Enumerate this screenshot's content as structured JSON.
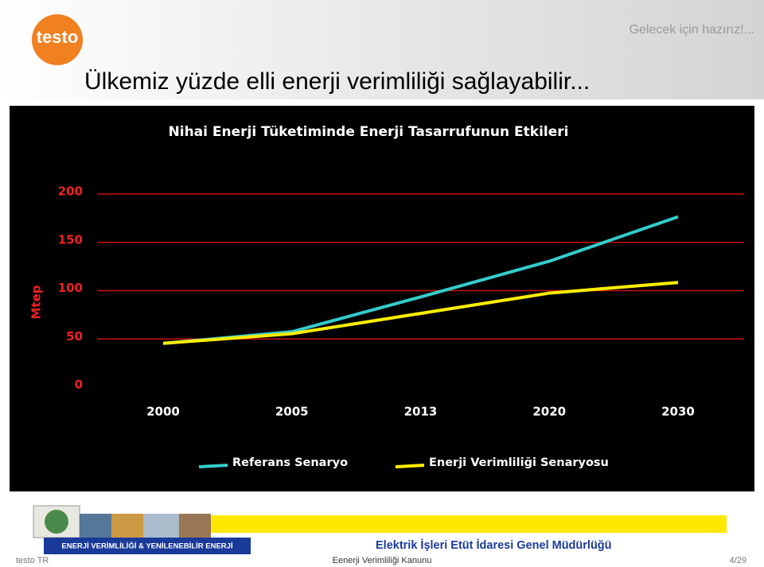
{
  "header": {
    "logo": "testo",
    "tagline": "Gelecek için hazırız!...",
    "title": "Ülkemiz yüzde elli enerji verimliliği sağlayabilir..."
  },
  "chart_data": {
    "type": "line",
    "title": "Nihai Enerji Tüketiminde Enerji Tasarrufunun Etkileri",
    "y_label": "Mtep",
    "categories": [
      "2000",
      "2005",
      "2013",
      "2020",
      "2030"
    ],
    "series": [
      {
        "name": "Referans Senaryo",
        "color": "#33cccc",
        "values": [
          43,
          55,
          91,
          128,
          174
        ]
      },
      {
        "name": "Enerji Verimliliği Senaryosu",
        "color": "#ffee00",
        "values": [
          43,
          53,
          74,
          95,
          106
        ]
      }
    ],
    "ylim": [
      0,
      200
    ],
    "yticks": [
      0,
      50,
      100,
      150,
      200
    ],
    "grid": true,
    "grid_color": "#cc1111",
    "tick_color": "#ee2222"
  },
  "banner": {
    "left": "ENERJİ VERİMLİLİĞİ & YENİLENEBİLİR ENERJİ",
    "right": "Elektrik İşleri Etüt İdaresi Genel Müdürlüğü"
  },
  "footer": {
    "left": "testo TR",
    "center": "Eenerji Verimliliği Kanunu",
    "page": "4/29"
  }
}
